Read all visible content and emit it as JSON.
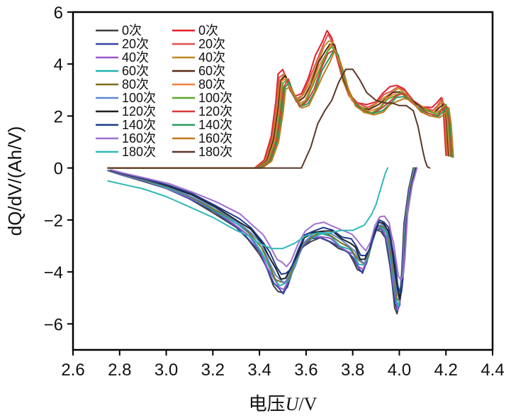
{
  "chart_data": {
    "type": "line",
    "title": "",
    "xlabel_prefix": "电压",
    "xlabel_var": "U",
    "xlabel_suffix": "/V",
    "ylabel": "dQ/dV/(Ah/V)",
    "xlim": [
      2.6,
      4.4
    ],
    "ylim": [
      -7,
      6
    ],
    "xticks": [
      2.6,
      2.8,
      3.0,
      3.2,
      3.4,
      3.6,
      3.8,
      4.0,
      4.2,
      4.4
    ],
    "xtick_labels": [
      "2.6",
      "2.8",
      "3.0",
      "3.2",
      "3.4",
      "3.6",
      "3.8",
      "4.0",
      "4.2",
      "4.4"
    ],
    "yticks": [
      6,
      4,
      2,
      0,
      -2,
      -4,
      -6
    ],
    "ytick_labels": [
      "6",
      "4",
      "2",
      "0",
      "−2",
      "−4",
      "−6"
    ],
    "legend_position": "top-left",
    "series": [
      {
        "name": "0次",
        "group": "discharge",
        "color": "#404040",
        "s": 1.0,
        "shift": 0.0,
        "flat": 0
      },
      {
        "name": "20次",
        "group": "discharge",
        "color": "#3348a8",
        "s": 0.99,
        "shift": 0.002,
        "flat": 0
      },
      {
        "name": "40次",
        "group": "discharge",
        "color": "#9b59c9",
        "s": 0.97,
        "shift": 0.004,
        "flat": 0
      },
      {
        "name": "60次",
        "group": "discharge",
        "color": "#22b3b3",
        "s": 0.95,
        "shift": 0.006,
        "flat": 0
      },
      {
        "name": "80次",
        "group": "discharge",
        "color": "#7d6f1f",
        "s": 0.93,
        "shift": 0.008,
        "flat": 0
      },
      {
        "name": "100次",
        "group": "discharge",
        "color": "#5a8ad0",
        "s": 0.91,
        "shift": 0.01,
        "flat": 0
      },
      {
        "name": "120次",
        "group": "discharge",
        "color": "#202020",
        "s": 0.88,
        "shift": 0.012,
        "flat": 0
      },
      {
        "name": "140次",
        "group": "discharge",
        "color": "#1d3a8a",
        "s": 0.85,
        "shift": 0.014,
        "flat": 0
      },
      {
        "name": "160次",
        "group": "discharge",
        "color": "#a070d0",
        "s": 0.78,
        "shift": 0.016,
        "flat": 0
      },
      {
        "name": "180次",
        "group": "discharge",
        "color": "#30b8b8",
        "s": 0.68,
        "shift": -0.03,
        "flat": 1
      },
      {
        "name": "0次",
        "group": "charge",
        "color": "#e0202a",
        "s": 1.0,
        "shift": 0.0,
        "flat": 0
      },
      {
        "name": "20次",
        "group": "charge",
        "color": "#e05050",
        "s": 0.97,
        "shift": 0.004,
        "flat": 0
      },
      {
        "name": "40次",
        "group": "charge",
        "color": "#c08a20",
        "s": 0.95,
        "shift": 0.008,
        "flat": 0
      },
      {
        "name": "60次",
        "group": "charge",
        "color": "#5a2a1a",
        "s": 0.93,
        "shift": 0.012,
        "flat": 0
      },
      {
        "name": "80次",
        "group": "charge",
        "color": "#f08040",
        "s": 0.91,
        "shift": 0.016,
        "flat": 0
      },
      {
        "name": "100次",
        "group": "charge",
        "color": "#58a82a",
        "s": 0.9,
        "shift": 0.02,
        "flat": 0
      },
      {
        "name": "120次",
        "group": "charge",
        "color": "#d83838",
        "s": 0.88,
        "shift": 0.024,
        "flat": 0
      },
      {
        "name": "140次",
        "group": "charge",
        "color": "#2a9a60",
        "s": 0.86,
        "shift": 0.028,
        "flat": 0
      },
      {
        "name": "160次",
        "group": "charge",
        "color": "#c07a18",
        "s": 0.84,
        "shift": 0.032,
        "flat": 0
      },
      {
        "name": "180次",
        "group": "charge",
        "color": "#5a3828",
        "s": 0.72,
        "shift": 0.06,
        "flat": 1
      }
    ],
    "discharge_curve": {
      "x": [
        2.75,
        2.8,
        2.9,
        3.0,
        3.1,
        3.2,
        3.3,
        3.35,
        3.4,
        3.43,
        3.46,
        3.48,
        3.5,
        3.52,
        3.55,
        3.58,
        3.62,
        3.66,
        3.7,
        3.74,
        3.78,
        3.8,
        3.82,
        3.84,
        3.86,
        3.88,
        3.9,
        3.92,
        3.94,
        3.95,
        3.96,
        3.97,
        3.98,
        3.99,
        4.0,
        4.01,
        4.02,
        4.04,
        4.06
      ],
      "y": [
        -0.1,
        -0.25,
        -0.5,
        -0.8,
        -1.2,
        -1.7,
        -2.3,
        -2.7,
        -3.3,
        -3.9,
        -4.5,
        -4.75,
        -4.8,
        -4.5,
        -3.8,
        -3.1,
        -2.8,
        -2.7,
        -2.8,
        -3.1,
        -3.3,
        -3.5,
        -3.9,
        -4.0,
        -3.6,
        -2.9,
        -2.4,
        -2.4,
        -2.7,
        -3.2,
        -3.8,
        -4.6,
        -5.3,
        -5.6,
        -5.2,
        -4.0,
        -2.2,
        -0.8,
        0.0
      ]
    },
    "discharge_180": {
      "x": [
        2.75,
        2.8,
        2.9,
        3.0,
        3.1,
        3.2,
        3.3,
        3.35,
        3.4,
        3.45,
        3.5,
        3.55,
        3.6,
        3.65,
        3.7,
        3.75,
        3.8,
        3.85,
        3.88,
        3.9,
        3.92,
        3.94,
        3.95
      ],
      "y": [
        -0.5,
        -0.6,
        -0.8,
        -1.1,
        -1.5,
        -1.9,
        -2.4,
        -2.6,
        -2.9,
        -3.1,
        -3.1,
        -2.9,
        -2.6,
        -2.5,
        -2.5,
        -2.4,
        -2.4,
        -2.2,
        -1.8,
        -1.4,
        -0.8,
        -0.2,
        0.0
      ]
    },
    "charge_curve": {
      "x": [
        3.38,
        3.42,
        3.45,
        3.47,
        3.48,
        3.5,
        3.52,
        3.55,
        3.58,
        3.61,
        3.64,
        3.67,
        3.69,
        3.71,
        3.73,
        3.75,
        3.78,
        3.82,
        3.86,
        3.9,
        3.93,
        3.96,
        3.99,
        4.02,
        4.06,
        4.1,
        4.14,
        4.16,
        4.18,
        4.19,
        4.2
      ],
      "y": [
        0.0,
        0.3,
        1.2,
        2.6,
        3.6,
        3.8,
        3.3,
        2.7,
        2.9,
        3.5,
        4.3,
        4.9,
        5.2,
        5.0,
        4.4,
        3.6,
        2.9,
        2.5,
        2.4,
        2.6,
        2.9,
        3.1,
        3.2,
        3.0,
        2.6,
        2.4,
        2.3,
        2.5,
        2.7,
        2.0,
        0.5
      ]
    },
    "charge_180": {
      "x": [
        3.58,
        3.62,
        3.65,
        3.68,
        3.71,
        3.74,
        3.77,
        3.8,
        3.83,
        3.86,
        3.9,
        3.94,
        3.97,
        4.0,
        4.03,
        4.06,
        4.08,
        4.1,
        4.11,
        4.12,
        4.13
      ],
      "y": [
        0.0,
        0.8,
        1.7,
        2.2,
        2.6,
        3.3,
        3.8,
        3.8,
        3.4,
        2.9,
        2.6,
        2.5,
        2.5,
        2.4,
        2.4,
        2.2,
        1.6,
        0.7,
        0.3,
        0.05,
        0.0
      ]
    }
  }
}
